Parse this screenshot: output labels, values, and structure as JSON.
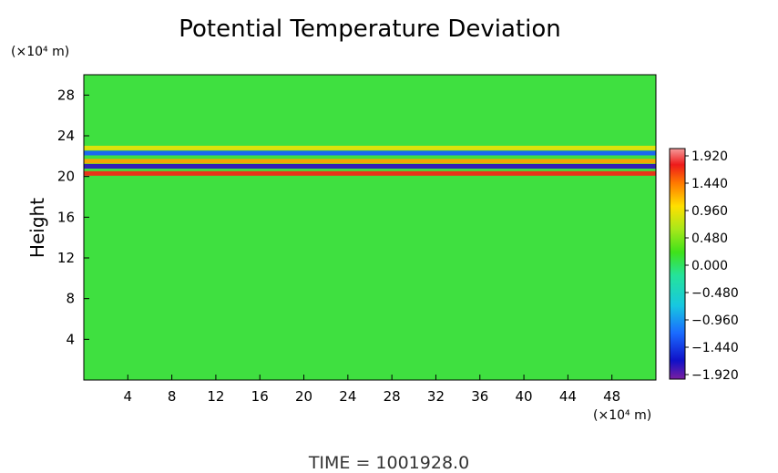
{
  "chart_data": {
    "type": "heatmap",
    "title": "Potential Temperature Deviation",
    "ylabel": "Height",
    "xunit": "(×10⁴ m)",
    "yunit": "(×10⁴ m)",
    "xlim": [
      0,
      52
    ],
    "ylim": [
      0,
      30
    ],
    "x_ticks": [
      "4",
      "8",
      "12",
      "16",
      "20",
      "24",
      "28",
      "32",
      "36",
      "40",
      "44",
      "48"
    ],
    "y_ticks": [
      "4",
      "8",
      "12",
      "16",
      "20",
      "24",
      "28"
    ],
    "colorbar": {
      "min": -1.92,
      "max": 1.92,
      "ticks": [
        "1.920",
        "1.440",
        "0.960",
        "0.480",
        "0.000",
        "−0.480",
        "−0.960",
        "−1.440",
        "−1.920"
      ]
    },
    "background_value": 0.0,
    "features": [
      {
        "desc": "positive band",
        "x_range": [
          0,
          52
        ],
        "y": 20.3,
        "value": 1.6
      },
      {
        "desc": "negative band",
        "x_range": [
          0,
          52
        ],
        "y": 21.0,
        "value": -1.7
      },
      {
        "desc": "positive band",
        "x_range": [
          0,
          52
        ],
        "y": 21.5,
        "value": 1.2
      },
      {
        "desc": "negative band",
        "x_range": [
          0,
          52
        ],
        "y": 22.3,
        "value": -1.2
      },
      {
        "desc": "positive band",
        "x_range": [
          0,
          52
        ],
        "y": 22.8,
        "value": 0.8
      }
    ],
    "footer": "TIME  =  1001928.0"
  }
}
